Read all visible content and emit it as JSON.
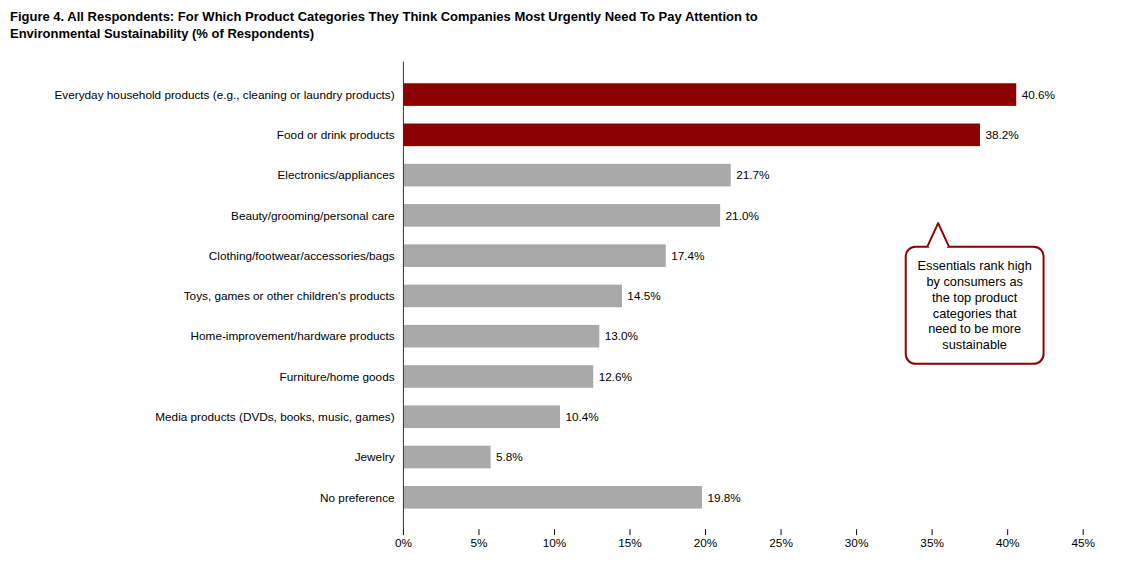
{
  "chart_data": {
    "type": "bar",
    "orientation": "horizontal",
    "title": "Figure 4. All Respondents: For Which Product Categories They Think Companies Most Urgently Need To Pay Attention to",
    "subtitle": "Environmental Sustainability (% of Respondents)",
    "categories": [
      "Everyday household products (e.g., cleaning or laundry products)",
      "Food or drink products",
      "Electronics/appliances",
      "Beauty/grooming/personal care",
      "Clothing/footwear/accessories/bags",
      "Toys, games or other children's products",
      "Home-improvement/hardware products",
      "Furniture/home goods",
      "Media products (DVDs, books, music, games)",
      "Jewelry",
      "No preference"
    ],
    "values": [
      40.6,
      38.2,
      21.7,
      21.0,
      17.4,
      14.5,
      13.0,
      12.6,
      10.4,
      5.8,
      19.8
    ],
    "value_labels": [
      "40.6%",
      "38.2%",
      "21.7%",
      "21.0%",
      "17.4%",
      "14.5%",
      "13.0%",
      "12.6%",
      "10.4%",
      "5.8%",
      "19.8%"
    ],
    "colors": [
      "#8B0000",
      "#8B0000",
      "#A9A9A9",
      "#A9A9A9",
      "#A9A9A9",
      "#A9A9A9",
      "#A9A9A9",
      "#A9A9A9",
      "#A9A9A9",
      "#A9A9A9",
      "#A9A9A9"
    ],
    "data_labels": true,
    "xlim": [
      0,
      45
    ],
    "xticks": [
      {
        "value": 0,
        "label": "0%"
      },
      {
        "value": 5,
        "label": "5%"
      },
      {
        "value": 10,
        "label": "10%"
      },
      {
        "value": 15,
        "label": "15%"
      },
      {
        "value": 20,
        "label": "20%"
      },
      {
        "value": 25,
        "label": "25%"
      },
      {
        "value": 30,
        "label": "30%"
      },
      {
        "value": 35,
        "label": "35%"
      },
      {
        "value": 40,
        "label": "40%"
      },
      {
        "value": 45,
        "label": "45%"
      }
    ],
    "grid": false,
    "annotations": [
      {
        "text": "Essentials rank high\nby consumers as\nthe top product\ncategories that\nneed to be more\nsustainable",
        "color": "#8B0000"
      }
    ]
  }
}
